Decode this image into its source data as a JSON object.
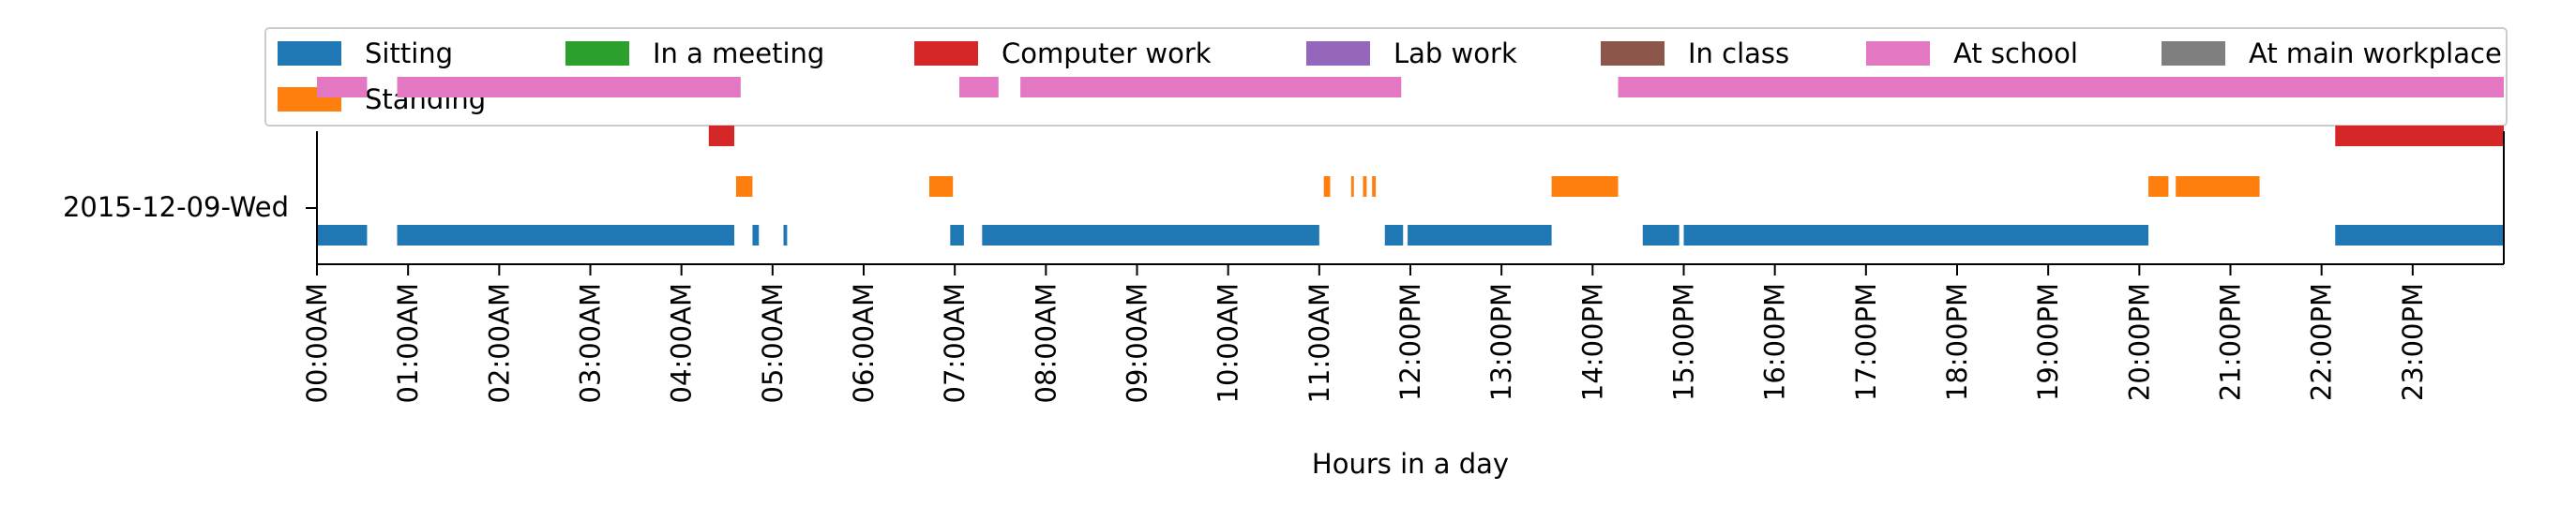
{
  "chart_data": {
    "type": "timeline",
    "xlabel": "Hours in a day",
    "ylabel": "",
    "xlim": [
      0,
      24
    ],
    "y_category": "2015-12-09-Wed",
    "x_ticks": [
      "00:00AM",
      "01:00AM",
      "02:00AM",
      "03:00AM",
      "04:00AM",
      "05:00AM",
      "06:00AM",
      "07:00AM",
      "08:00AM",
      "09:00AM",
      "10:00AM",
      "11:00AM",
      "12:00PM",
      "13:00PM",
      "14:00PM",
      "15:00PM",
      "16:00PM",
      "17:00PM",
      "18:00PM",
      "19:00PM",
      "20:00PM",
      "21:00PM",
      "22:00PM",
      "23:00PM"
    ],
    "legend_placement": "top",
    "legend": [
      {
        "label": "Sitting",
        "color": "#1f77b4"
      },
      {
        "label": "In a meeting",
        "color": "#2ca02c"
      },
      {
        "label": "Computer work",
        "color": "#d62728"
      },
      {
        "label": "Lab work",
        "color": "#9467bd"
      },
      {
        "label": "In class",
        "color": "#8c564b"
      },
      {
        "label": "At school",
        "color": "#e377c2"
      },
      {
        "label": "At main workplace",
        "color": "#7f7f7f"
      },
      {
        "label": "Standing",
        "color": "#ff7f0e"
      }
    ],
    "series": [
      {
        "name": "Sitting",
        "color": "#1f77b4",
        "row": 0,
        "intervals": [
          [
            0.0,
            0.55
          ],
          [
            0.88,
            4.58
          ],
          [
            4.78,
            4.85
          ],
          [
            5.12,
            5.16
          ],
          [
            6.95,
            7.1
          ],
          [
            7.3,
            11.0
          ],
          [
            11.72,
            11.92
          ],
          [
            11.97,
            13.55
          ],
          [
            14.55,
            14.95
          ],
          [
            15.0,
            20.1
          ],
          [
            22.15,
            24.0
          ]
        ]
      },
      {
        "name": "Standing",
        "color": "#ff7f0e",
        "row": 1,
        "intervals": [
          [
            4.6,
            4.78
          ],
          [
            6.72,
            6.98
          ],
          [
            11.05,
            11.12
          ],
          [
            11.35,
            11.38
          ],
          [
            11.48,
            11.52
          ],
          [
            11.58,
            11.62
          ],
          [
            13.55,
            14.28
          ],
          [
            20.1,
            20.32
          ],
          [
            20.4,
            21.32
          ]
        ]
      },
      {
        "name": "Computer work",
        "color": "#d62728",
        "row": 2,
        "intervals": [
          [
            4.3,
            4.58
          ],
          [
            22.15,
            24.0
          ]
        ]
      },
      {
        "name": "At school",
        "color": "#e377c2",
        "row": 4,
        "intervals": [
          [
            0.0,
            0.55
          ],
          [
            0.88,
            4.65
          ],
          [
            7.05,
            7.48
          ],
          [
            7.72,
            11.9
          ],
          [
            14.28,
            24.0
          ]
        ]
      }
    ]
  }
}
